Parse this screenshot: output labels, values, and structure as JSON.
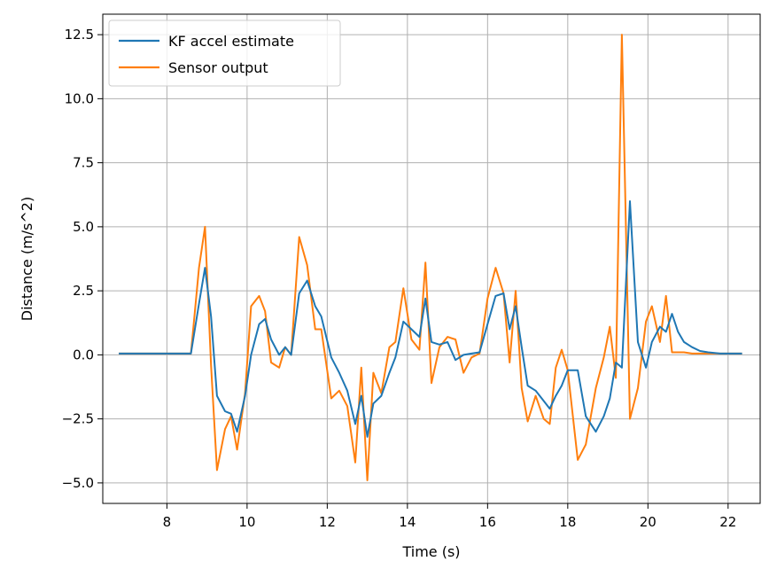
{
  "chart_data": {
    "type": "line",
    "title": "",
    "xlabel": "Time (s)",
    "ylabel": "Distance (m/s^2)",
    "xlim": [
      6.4,
      22.8
    ],
    "ylim": [
      -5.8,
      13.3
    ],
    "xticks": [
      8,
      10,
      12,
      14,
      16,
      18,
      20,
      22
    ],
    "xtick_labels": [
      "8",
      "10",
      "12",
      "14",
      "16",
      "18",
      "20",
      "22"
    ],
    "yticks": [
      -5.0,
      -2.5,
      0.0,
      2.5,
      5.0,
      7.5,
      10.0,
      12.5
    ],
    "ytick_labels": [
      "−5.0",
      "−2.5",
      "0.0",
      "2.5",
      "5.0",
      "7.5",
      "10.0",
      "12.5"
    ],
    "grid": true,
    "legend_position": "upper-left",
    "series": [
      {
        "name": "KF accel estimate",
        "color": "#1f77b4",
        "x": [
          6.8,
          8.6,
          8.8,
          8.95,
          9.1,
          9.25,
          9.45,
          9.6,
          9.75,
          9.95,
          10.1,
          10.3,
          10.45,
          10.6,
          10.8,
          10.95,
          11.1,
          11.3,
          11.5,
          11.7,
          11.85,
          12.1,
          12.3,
          12.5,
          12.7,
          12.85,
          13.0,
          13.15,
          13.35,
          13.55,
          13.7,
          13.9,
          14.1,
          14.3,
          14.45,
          14.6,
          14.8,
          15.0,
          15.2,
          15.4,
          15.6,
          15.8,
          16.0,
          16.2,
          16.4,
          16.55,
          16.7,
          16.85,
          17.0,
          17.2,
          17.4,
          17.55,
          17.7,
          17.85,
          18.0,
          18.25,
          18.45,
          18.7,
          18.9,
          19.05,
          19.2,
          19.35,
          19.55,
          19.75,
          19.95,
          20.1,
          20.3,
          20.45,
          20.6,
          20.75,
          20.9,
          21.1,
          21.3,
          21.5,
          21.8,
          22.35
        ],
        "y": [
          0.05,
          0.05,
          2.0,
          3.4,
          1.5,
          -1.6,
          -2.2,
          -2.3,
          -3.0,
          -1.6,
          0.0,
          1.2,
          1.4,
          0.6,
          0.0,
          0.3,
          0.0,
          2.4,
          2.9,
          1.9,
          1.5,
          -0.1,
          -0.7,
          -1.4,
          -2.7,
          -1.6,
          -3.2,
          -1.9,
          -1.6,
          -0.7,
          -0.1,
          1.3,
          1.0,
          0.7,
          2.2,
          0.5,
          0.4,
          0.5,
          -0.2,
          0.0,
          0.05,
          0.1,
          1.2,
          2.3,
          2.4,
          1.0,
          1.9,
          0.3,
          -1.2,
          -1.4,
          -1.8,
          -2.1,
          -1.6,
          -1.2,
          -0.6,
          -0.6,
          -2.4,
          -3.0,
          -2.4,
          -1.7,
          -0.3,
          -0.5,
          6.0,
          0.5,
          -0.5,
          0.5,
          1.1,
          0.9,
          1.6,
          0.9,
          0.5,
          0.3,
          0.15,
          0.1,
          0.05,
          0.05
        ]
      },
      {
        "name": "Sensor output",
        "color": "#ff7f0e",
        "x": [
          6.8,
          8.6,
          8.8,
          8.95,
          9.1,
          9.25,
          9.45,
          9.6,
          9.75,
          9.95,
          10.1,
          10.3,
          10.45,
          10.6,
          10.8,
          10.95,
          11.1,
          11.3,
          11.5,
          11.7,
          11.85,
          12.1,
          12.3,
          12.5,
          12.7,
          12.85,
          13.0,
          13.15,
          13.35,
          13.55,
          13.7,
          13.9,
          14.1,
          14.3,
          14.45,
          14.6,
          14.8,
          15.0,
          15.2,
          15.4,
          15.6,
          15.8,
          16.0,
          16.2,
          16.4,
          16.55,
          16.7,
          16.85,
          17.0,
          17.2,
          17.4,
          17.55,
          17.7,
          17.85,
          18.0,
          18.25,
          18.45,
          18.7,
          18.9,
          19.05,
          19.2,
          19.35,
          19.55,
          19.75,
          19.95,
          20.1,
          20.3,
          20.45,
          20.6,
          20.75,
          20.9,
          21.1,
          21.3,
          21.5,
          21.8,
          22.35
        ],
        "y": [
          0.05,
          0.05,
          3.4,
          5.0,
          -0.4,
          -4.5,
          -2.9,
          -2.4,
          -3.7,
          -1.5,
          1.9,
          2.3,
          1.7,
          -0.3,
          -0.5,
          0.3,
          0.0,
          4.6,
          3.5,
          1.0,
          1.0,
          -1.7,
          -1.4,
          -2.0,
          -4.2,
          -0.5,
          -4.9,
          -0.7,
          -1.5,
          0.3,
          0.5,
          2.6,
          0.6,
          0.2,
          3.6,
          -1.1,
          0.3,
          0.7,
          0.6,
          -0.7,
          -0.1,
          0.05,
          2.2,
          3.4,
          2.4,
          -0.3,
          2.5,
          -1.3,
          -2.6,
          -1.6,
          -2.5,
          -2.7,
          -0.5,
          0.2,
          -0.6,
          -4.1,
          -3.5,
          -1.3,
          -0.1,
          1.1,
          -0.9,
          12.5,
          -2.5,
          -1.3,
          1.3,
          1.9,
          0.5,
          2.3,
          0.1,
          0.1,
          0.1,
          0.05,
          0.05,
          0.05,
          0.05,
          0.05
        ]
      }
    ]
  }
}
